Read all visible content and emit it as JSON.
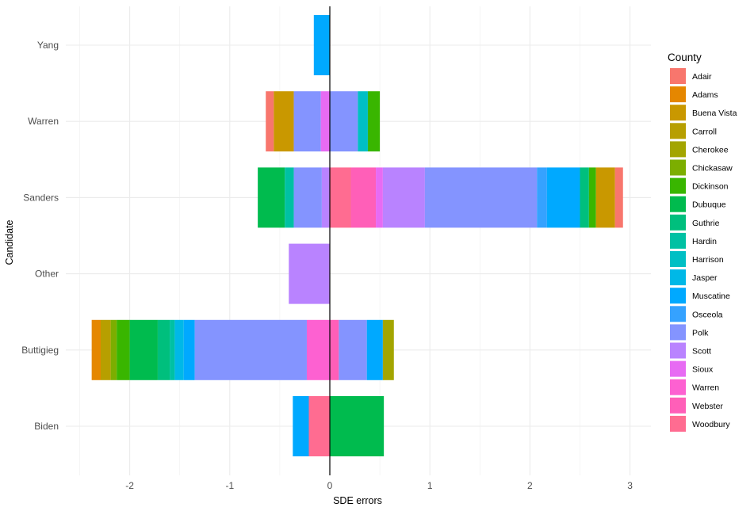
{
  "chart_data": {
    "type": "bar",
    "orientation": "horizontal",
    "stacked": true,
    "title": "",
    "xlabel": "SDE errors",
    "ylabel": "Candidate",
    "xlim": [
      -2.5,
      3.2
    ],
    "xticks": [
      -2,
      -1,
      0,
      1,
      2,
      3
    ],
    "xtick_labels": [
      "-2",
      "-1",
      "0",
      "1",
      "2",
      "3"
    ],
    "grid": true,
    "legend_position": "right",
    "legend_title": "County",
    "categories": [
      "Yang",
      "Warren",
      "Sanders",
      "Other",
      "Buttigieg",
      "Biden"
    ],
    "counties": [
      {
        "name": "Adair",
        "color": "#F8766D"
      },
      {
        "name": "Adams",
        "color": "#E58700"
      },
      {
        "name": "Buena Vista",
        "color": "#C99800"
      },
      {
        "name": "Carroll",
        "color": "#A3A500"
      },
      {
        "name": "Cherokee",
        "color": "#6BB100"
      },
      {
        "name": "Chickasaw",
        "color": "#00BA38"
      },
      {
        "name": "Dickinson",
        "color": "#00BF7D"
      },
      {
        "name": "Dubuque",
        "color": "#00C0AF"
      },
      {
        "name": "Guthrie",
        "color": "#00BCD8"
      },
      {
        "name": "Hardin",
        "color": "#00B0F6"
      },
      {
        "name": "Harrison",
        "color": "#619CFF"
      },
      {
        "name": "Jasper",
        "color": "#B983FF"
      },
      {
        "name": "Muscatine",
        "color": "#E76BF3"
      },
      {
        "name": "Osceola",
        "color": "#FD61D1"
      },
      {
        "name": "Polk",
        "color": "#FF67A4"
      },
      {
        "name": "Scott",
        "color": "#F8766D"
      },
      {
        "name": "Sioux",
        "color": "#E58700"
      },
      {
        "name": "Warren",
        "color": "#C99800"
      },
      {
        "name": "Webster",
        "color": "#A3A500"
      },
      {
        "name": "Woodbury",
        "color": "#6BB100"
      }
    ],
    "legend_colors": [
      "#F8766D",
      "#E58700",
      "#C99800",
      "#B79F00",
      "#A3A500",
      "#7CAE00",
      "#39B600",
      "#00BB4E",
      "#00BF7D",
      "#00C1A3",
      "#00BFC4",
      "#00B8E7",
      "#00A9FF",
      "#35A2FF",
      "#8494FF",
      "#B983FF",
      "#E76BF3",
      "#FD61D1",
      "#FF5FB8",
      "#FF6C91"
    ],
    "series": [
      {
        "candidate": "Yang",
        "segments": [
          {
            "county": "Muscatine",
            "color": "#00A9FF",
            "from": -0.16,
            "to": 0
          }
        ]
      },
      {
        "candidate": "Warren",
        "segments": [
          {
            "county": "Adair",
            "color": "#F8766D",
            "from": -0.64,
            "to": -0.56
          },
          {
            "county": "Buena Vista",
            "color": "#C99800",
            "from": -0.56,
            "to": -0.36
          },
          {
            "county": "Polk",
            "color": "#8494FF",
            "from": -0.36,
            "to": -0.09
          },
          {
            "county": "Sioux",
            "color": "#E76BF3",
            "from": -0.09,
            "to": 0
          },
          {
            "county": "Polk",
            "color": "#8494FF",
            "from": 0,
            "to": 0.28
          },
          {
            "county": "Harrison",
            "color": "#00BFC4",
            "from": 0.28,
            "to": 0.38
          },
          {
            "county": "Dickinson",
            "color": "#39B600",
            "from": 0.38,
            "to": 0.5
          }
        ]
      },
      {
        "candidate": "Sanders",
        "segments": [
          {
            "county": "Dubuque",
            "color": "#00BB4E",
            "from": -0.72,
            "to": -0.45
          },
          {
            "county": "Hardin",
            "color": "#00C1A3",
            "from": -0.45,
            "to": -0.36
          },
          {
            "county": "Polk",
            "color": "#8494FF",
            "from": -0.36,
            "to": -0.08
          },
          {
            "county": "Scott",
            "color": "#B983FF",
            "from": -0.08,
            "to": 0
          },
          {
            "county": "Woodbury",
            "color": "#FF6C91",
            "from": 0,
            "to": 0.21
          },
          {
            "county": "Webster",
            "color": "#FF5FB8",
            "from": 0.21,
            "to": 0.46
          },
          {
            "county": "Sioux",
            "color": "#E76BF3",
            "from": 0.46,
            "to": 0.53
          },
          {
            "county": "Scott",
            "color": "#B983FF",
            "from": 0.53,
            "to": 0.95
          },
          {
            "county": "Polk",
            "color": "#8494FF",
            "from": 0.95,
            "to": 2.07
          },
          {
            "county": "Osceola",
            "color": "#35A2FF",
            "from": 2.07,
            "to": 2.17
          },
          {
            "county": "Muscatine",
            "color": "#00A9FF",
            "from": 2.17,
            "to": 2.5
          },
          {
            "county": "Guthrie",
            "color": "#00BF7D",
            "from": 2.5,
            "to": 2.59
          },
          {
            "county": "Dickinson",
            "color": "#39B600",
            "from": 2.59,
            "to": 2.66
          },
          {
            "county": "Buena Vista",
            "color": "#C99800",
            "from": 2.66,
            "to": 2.85
          },
          {
            "county": "Adair",
            "color": "#F8766D",
            "from": 2.85,
            "to": 2.93
          }
        ]
      },
      {
        "candidate": "Other",
        "segments": [
          {
            "county": "Scott",
            "color": "#B983FF",
            "from": -0.41,
            "to": 0
          }
        ]
      },
      {
        "candidate": "Buttigieg",
        "segments": [
          {
            "county": "Adams",
            "color": "#E58700",
            "from": -2.38,
            "to": -2.29
          },
          {
            "county": "Carroll",
            "color": "#B79F00",
            "from": -2.29,
            "to": -2.19
          },
          {
            "county": "Chickasaw",
            "color": "#7CAE00",
            "from": -2.19,
            "to": -2.13
          },
          {
            "county": "Dickinson",
            "color": "#39B600",
            "from": -2.13,
            "to": -2.0
          },
          {
            "county": "Dubuque",
            "color": "#00BB4E",
            "from": -2.0,
            "to": -1.72
          },
          {
            "county": "Guthrie",
            "color": "#00BF7D",
            "from": -1.72,
            "to": -1.6
          },
          {
            "county": "Hardin",
            "color": "#00C1A3",
            "from": -1.6,
            "to": -1.55
          },
          {
            "county": "Jasper",
            "color": "#00B8E7",
            "from": -1.55,
            "to": -1.46
          },
          {
            "county": "Muscatine",
            "color": "#00A9FF",
            "from": -1.46,
            "to": -1.35
          },
          {
            "county": "Polk",
            "color": "#8494FF",
            "from": -1.35,
            "to": -0.23
          },
          {
            "county": "Warren",
            "color": "#FD61D1",
            "from": -0.23,
            "to": 0
          },
          {
            "county": "Webster",
            "color": "#FF5FB8",
            "from": 0,
            "to": 0.09
          },
          {
            "county": "Polk",
            "color": "#8494FF",
            "from": 0.09,
            "to": 0.37
          },
          {
            "county": "Muscatine",
            "color": "#00A9FF",
            "from": 0.37,
            "to": 0.53
          },
          {
            "county": "Cherokee",
            "color": "#A3A500",
            "from": 0.53,
            "to": 0.64
          }
        ]
      },
      {
        "candidate": "Biden",
        "segments": [
          {
            "county": "Muscatine",
            "color": "#00A9FF",
            "from": -0.37,
            "to": -0.21
          },
          {
            "county": "Woodbury",
            "color": "#FF6C91",
            "from": -0.21,
            "to": 0
          },
          {
            "county": "Dubuque",
            "color": "#00BB4E",
            "from": 0,
            "to": 0.54
          }
        ]
      }
    ]
  }
}
